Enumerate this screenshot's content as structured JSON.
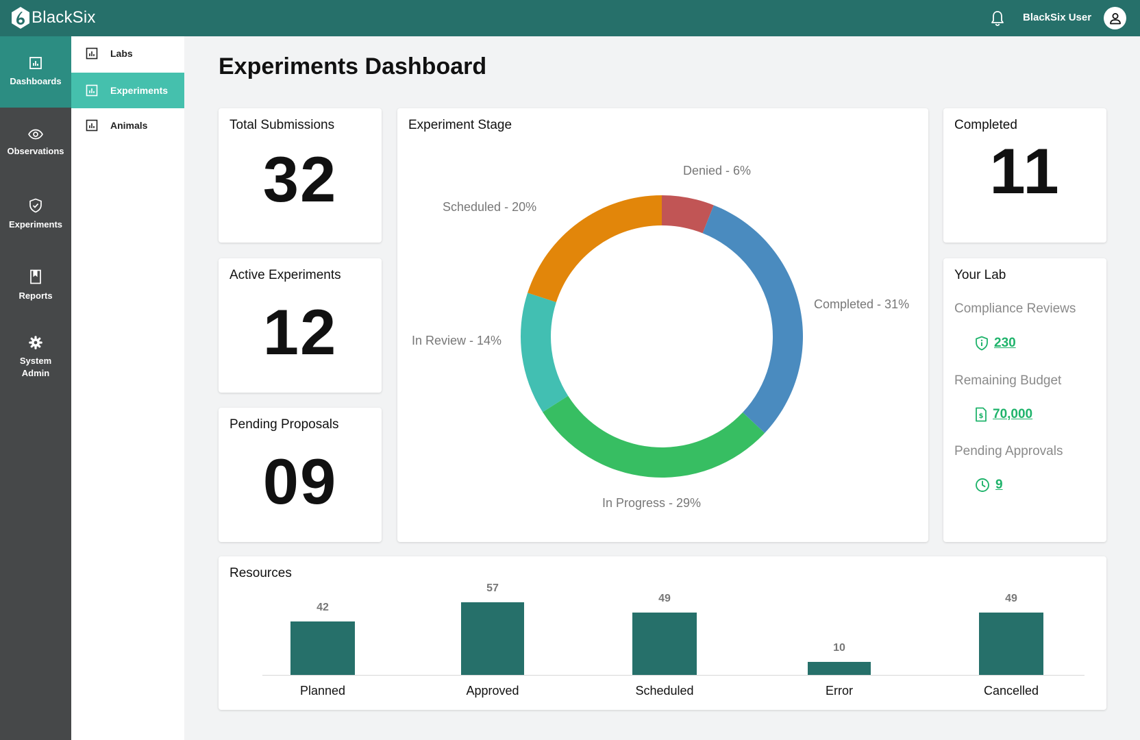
{
  "app": {
    "name": "BlackSix",
    "user": "BlackSix User"
  },
  "primary_nav": [
    {
      "label": "Dashboards",
      "icon": "chart-icon",
      "active": true
    },
    {
      "label": "Observations",
      "icon": "eye-icon",
      "active": false
    },
    {
      "label": "Experiments",
      "icon": "shield-icon",
      "active": false
    },
    {
      "label": "Reports",
      "icon": "bookmark-icon",
      "active": false
    },
    {
      "label": "System Admin",
      "icon": "gear-icon",
      "active": false
    }
  ],
  "secondary_nav": [
    {
      "label": "Labs",
      "icon": "chart-icon",
      "active": false
    },
    {
      "label": "Experiments",
      "icon": "chart-icon",
      "active": true
    },
    {
      "label": "Animals",
      "icon": "chart-icon",
      "active": false
    }
  ],
  "page": {
    "title": "Experiments Dashboard"
  },
  "stats": {
    "total_submissions": {
      "title": "Total Submissions",
      "value": "32"
    },
    "active_experiments": {
      "title": "Active Experiments",
      "value": "12"
    },
    "pending_proposals": {
      "title": "Pending Proposals",
      "value": "09"
    },
    "completed": {
      "title": "Completed",
      "value": "11"
    }
  },
  "your_lab": {
    "title": "Your Lab",
    "items": [
      {
        "label": "Compliance Reviews",
        "value": "230",
        "icon": "shield-info-icon"
      },
      {
        "label": "Remaining Budget",
        "value": "70,000",
        "icon": "dollar-document-icon"
      },
      {
        "label": "Pending Approvals",
        "value": "9",
        "icon": "clock-icon"
      }
    ]
  },
  "colors": {
    "brand": "#26706a",
    "nav_active": "#2c8d82",
    "subnav_active": "#45c0ad",
    "link_green": "#1fb36b"
  },
  "chart_data": [
    {
      "type": "pie",
      "title": "Experiment Stage",
      "series": [
        {
          "name": "Denied",
          "value": 6,
          "label": "Denied - 6%",
          "color": "#c15555"
        },
        {
          "name": "Completed",
          "value": 31,
          "label": "Completed - 31%",
          "color": "#4a8bbf"
        },
        {
          "name": "In Progress",
          "value": 29,
          "label": "In Progress - 29%",
          "color": "#37be62"
        },
        {
          "name": "In Review",
          "value": 14,
          "label": "In Review - 14%",
          "color": "#42bfb2"
        },
        {
          "name": "Scheduled",
          "value": 20,
          "label": "Scheduled - 20%",
          "color": "#e2860a"
        }
      ]
    },
    {
      "type": "bar",
      "title": "Resources",
      "categories": [
        "Planned",
        "Approved",
        "Scheduled",
        "Error",
        "Cancelled"
      ],
      "values": [
        42,
        57,
        49,
        10,
        49
      ],
      "color": "#26706a"
    }
  ]
}
